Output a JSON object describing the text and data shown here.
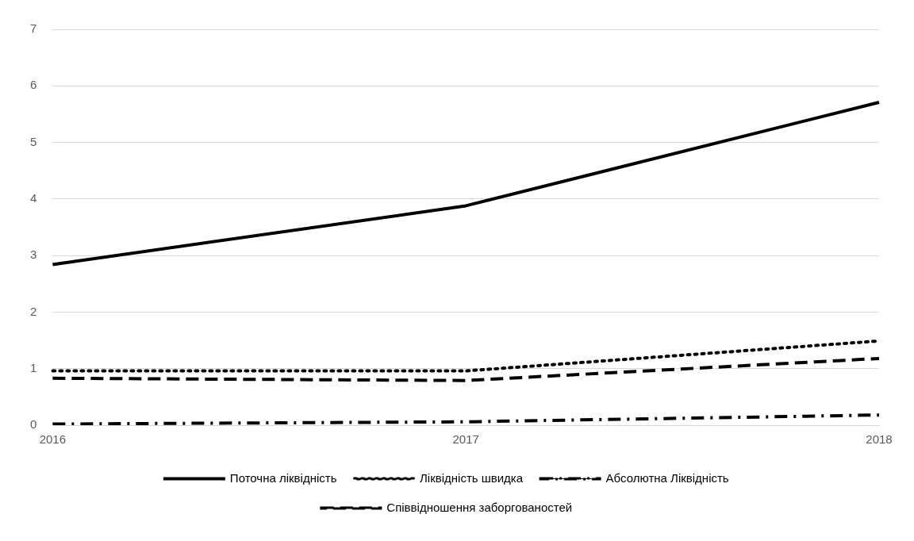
{
  "chart_data": {
    "type": "line",
    "categories": [
      "2016",
      "2017",
      "2018"
    ],
    "series": [
      {
        "name": "Поточна ліквідність",
        "color": "#000000",
        "line_style": "solid",
        "values": [
          2.84,
          3.88,
          5.71
        ]
      },
      {
        "name": "Ліквідність швидка",
        "color": "#000000",
        "line_style": "dotted",
        "values": [
          0.96,
          0.96,
          1.49
        ]
      },
      {
        "name": "Абсолютна Ліквідність",
        "color": "#000000",
        "line_style": "dashdot",
        "values": [
          0.02,
          0.06,
          0.18
        ]
      },
      {
        "name": "Співвідношення заборгованостей",
        "color": "#000000",
        "line_style": "dashed",
        "values": [
          0.83,
          0.79,
          1.18
        ]
      }
    ],
    "ylim": [
      0,
      7
    ],
    "yticks": [
      0,
      1,
      2,
      3,
      4,
      5,
      6,
      7
    ],
    "grid": "y",
    "legend": "bottom",
    "marker": "none"
  }
}
